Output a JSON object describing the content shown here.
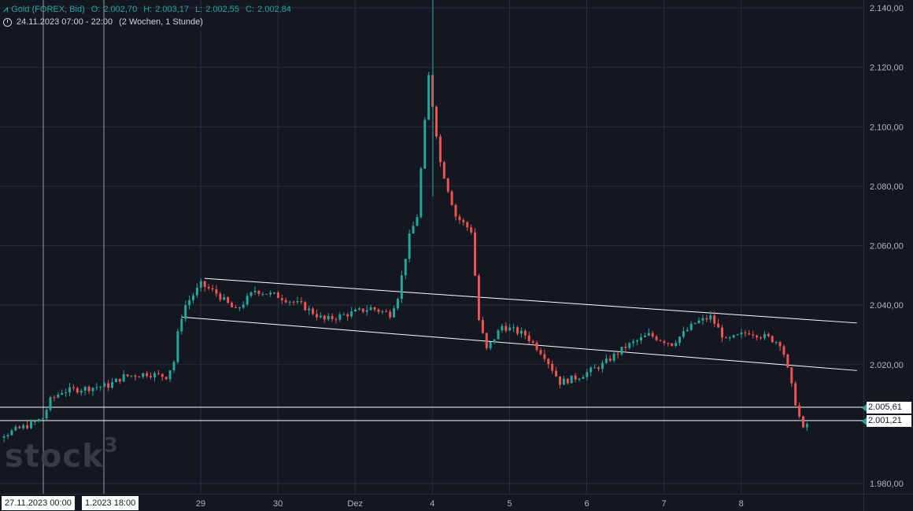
{
  "header": {
    "symbol": "Gold (FOREX, Bid)",
    "ohlc": [
      {
        "k": "O:",
        "v": "2.002,70"
      },
      {
        "k": "H:",
        "v": "2.003,17"
      },
      {
        "k": "L:",
        "v": "2.002,55"
      },
      {
        "k": "C:",
        "v": "2.002,84"
      }
    ],
    "range": "24.11.2023 07:00 - 22:00",
    "interval": "(2 Wochen, 1 Stunde)"
  },
  "watermark": "stock",
  "watermark_sup": "3",
  "price_tags": [
    "2.005,61",
    "2.001,21"
  ],
  "time_tags": [
    "27.11.2023 00:00",
    "1.2023 18:00"
  ],
  "colors": {
    "background": "#131722",
    "up": "#26a69a",
    "down": "#ef5350",
    "grid": "#2a2e39",
    "text": "#d1d4dc"
  },
  "chart_data": {
    "type": "candlestick",
    "title": "Gold (FOREX, Bid)",
    "ylim": [
      1975,
      2140
    ],
    "yticks": [
      "2.140,00",
      "2.120,00",
      "2.100,00",
      "2.080,00",
      "2.060,00",
      "2.040,00",
      "2.020,00",
      "1.980,00"
    ],
    "ytick_values": [
      2140,
      2120,
      2100,
      2080,
      2060,
      2040,
      2020,
      1980
    ],
    "xticks": [
      "29",
      "30",
      "Dez",
      "4",
      "5",
      "6",
      "7",
      "8"
    ],
    "xtick_days": [
      3,
      4,
      5,
      6,
      7,
      8,
      9,
      10
    ],
    "day_origin_note_excluded": true,
    "ohlc_path": [
      [
        0,
        1994
      ],
      [
        0.5,
        1997
      ],
      [
        0.8,
        2000
      ],
      [
        0.95,
        2002
      ],
      [
        1.05,
        2008
      ],
      [
        1.2,
        2011
      ],
      [
        1.5,
        2012
      ],
      [
        1.8,
        2013
      ],
      [
        2.0,
        2016
      ],
      [
        2.3,
        2017
      ],
      [
        2.55,
        2016
      ],
      [
        2.65,
        2021
      ],
      [
        2.72,
        2034
      ],
      [
        2.8,
        2040
      ],
      [
        3.0,
        2047
      ],
      [
        3.2,
        2044
      ],
      [
        3.45,
        2038
      ],
      [
        3.7,
        2045
      ],
      [
        4.0,
        2043
      ],
      [
        4.3,
        2040
      ],
      [
        4.6,
        2035
      ],
      [
        4.9,
        2037
      ],
      [
        5.2,
        2039
      ],
      [
        5.45,
        2037
      ],
      [
        5.55,
        2043
      ],
      [
        5.7,
        2063
      ],
      [
        5.8,
        2070
      ],
      [
        5.95,
        2117
      ],
      [
        6.1,
        2088
      ],
      [
        6.3,
        2070
      ],
      [
        6.5,
        2065
      ],
      [
        6.6,
        2035
      ],
      [
        6.7,
        2025
      ],
      [
        6.9,
        2033
      ],
      [
        7.2,
        2030
      ],
      [
        7.45,
        2023
      ],
      [
        7.65,
        2014
      ],
      [
        7.9,
        2016
      ],
      [
        8.2,
        2020
      ],
      [
        8.5,
        2026
      ],
      [
        8.8,
        2030
      ],
      [
        9.1,
        2027
      ],
      [
        9.4,
        2034
      ],
      [
        9.6,
        2036
      ],
      [
        9.8,
        2028
      ],
      [
        10.1,
        2031
      ],
      [
        10.35,
        2029
      ],
      [
        10.52,
        2027
      ],
      [
        10.62,
        2016
      ],
      [
        10.72,
        2005
      ],
      [
        10.8,
        1998
      ],
      [
        10.9,
        2002
      ]
    ],
    "levels": [
      2005.61,
      2001.21
    ],
    "channel_upper": [
      [
        3.05,
        2049
      ],
      [
        11.5,
        2034
      ]
    ],
    "channel_lower": [
      [
        2.75,
        2036
      ],
      [
        11.5,
        2018
      ]
    ],
    "vertical_markers_days": [
      0.15,
      0.93
    ]
  }
}
